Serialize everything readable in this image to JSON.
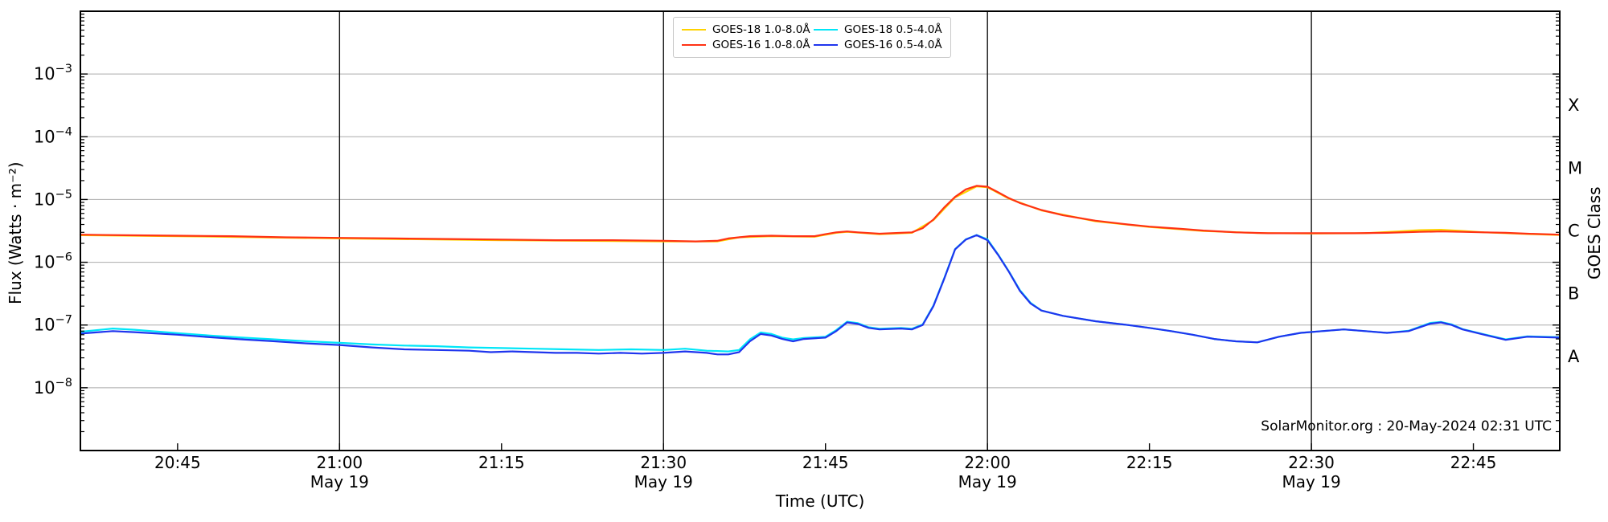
{
  "figure": {
    "watermark": "SolarMonitor.org : 20-May-2024 02:31 UTC"
  },
  "chart_data": {
    "type": "line",
    "title": "",
    "xlabel": "Time (UTC)",
    "ylabel": "Flux (Watts · m⁻²)",
    "ylabel_right": "GOES Class",
    "grid": {
      "horizontal_decades": true,
      "vertical_date_lines": true
    },
    "colors": {
      "grid_line": "#ababab",
      "date_line": "#111111",
      "axis": "#000000"
    },
    "x_axis": {
      "range": [
        "20:36",
        "22:53"
      ],
      "date": "May 19",
      "ticks": [
        {
          "time": "20:45",
          "label": "20:45",
          "line": false
        },
        {
          "time": "21:00",
          "label": "21:00",
          "date": "May 19",
          "line": true
        },
        {
          "time": "21:15",
          "label": "21:15",
          "line": false
        },
        {
          "time": "21:30",
          "label": "21:30",
          "date": "May 19",
          "line": true
        },
        {
          "time": "21:45",
          "label": "21:45",
          "line": false
        },
        {
          "time": "22:00",
          "label": "22:00",
          "date": "May 19",
          "line": true
        },
        {
          "time": "22:15",
          "label": "22:15",
          "line": false
        },
        {
          "time": "22:30",
          "label": "22:30",
          "date": "May 19",
          "line": true
        },
        {
          "time": "22:45",
          "label": "22:45",
          "line": false
        }
      ]
    },
    "y_axis": {
      "scale": "log",
      "range_exp": [
        -9,
        -2
      ],
      "labeled_exp": [
        -3,
        -4,
        -5,
        -6,
        -7,
        -8
      ]
    },
    "right_axis": {
      "classes": [
        {
          "label": "X",
          "exp": -3.5
        },
        {
          "label": "M",
          "exp": -4.5
        },
        {
          "label": "C",
          "exp": -5.5
        },
        {
          "label": "B",
          "exp": -6.5
        },
        {
          "label": "A",
          "exp": -7.5
        }
      ]
    },
    "legend": {
      "order": [
        0,
        2,
        1,
        3
      ],
      "position": "top-center"
    },
    "series": [
      {
        "name": "GOES-18 1.0-8.0Å",
        "color": "#ffd200",
        "points": [
          [
            "20:36",
            2.7e-06
          ],
          [
            "20:45",
            2.6e-06
          ],
          [
            "21:00",
            2.4e-06
          ],
          [
            "21:15",
            2.25e-06
          ],
          [
            "21:30",
            2.15e-06
          ],
          [
            "21:35",
            2.15e-06
          ],
          [
            "21:37",
            2.5e-06
          ],
          [
            "21:40",
            2.6e-06
          ],
          [
            "21:44",
            2.55e-06
          ],
          [
            "21:46",
            2.95e-06
          ],
          [
            "21:47",
            3.05e-06
          ],
          [
            "21:50",
            2.8e-06
          ],
          [
            "21:53",
            2.95e-06
          ],
          [
            "21:55",
            4.7e-06
          ],
          [
            "21:57",
            1.08e-05
          ],
          [
            "21:59",
            1.62e-05
          ],
          [
            "22:00",
            1.57e-05
          ],
          [
            "22:02",
            1.03e-05
          ],
          [
            "22:05",
            6.7e-06
          ],
          [
            "22:10",
            4.5e-06
          ],
          [
            "22:15",
            3.65e-06
          ],
          [
            "22:20",
            3.15e-06
          ],
          [
            "22:25",
            2.92e-06
          ],
          [
            "22:30",
            2.87e-06
          ],
          [
            "22:35",
            2.9e-06
          ],
          [
            "22:38",
            3.1e-06
          ],
          [
            "22:40",
            3.25e-06
          ],
          [
            "22:42",
            3.3e-06
          ],
          [
            "22:44",
            3.15e-06
          ],
          [
            "22:46",
            3e-06
          ],
          [
            "22:50",
            2.82e-06
          ],
          [
            "22:53",
            2.72e-06
          ]
        ]
      },
      {
        "name": "GOES-16 1.0-8.0Å",
        "color": "#ff3214",
        "points": [
          [
            "20:36",
            2.75e-06
          ],
          [
            "20:40",
            2.7e-06
          ],
          [
            "20:45",
            2.65e-06
          ],
          [
            "20:50",
            2.6e-06
          ],
          [
            "20:55",
            2.5e-06
          ],
          [
            "21:00",
            2.45e-06
          ],
          [
            "21:05",
            2.4e-06
          ],
          [
            "21:10",
            2.35e-06
          ],
          [
            "21:15",
            2.3e-06
          ],
          [
            "21:20",
            2.25e-06
          ],
          [
            "21:25",
            2.25e-06
          ],
          [
            "21:30",
            2.2e-06
          ],
          [
            "21:33",
            2.15e-06
          ],
          [
            "21:35",
            2.2e-06
          ],
          [
            "21:36",
            2.4e-06
          ],
          [
            "21:38",
            2.6e-06
          ],
          [
            "21:40",
            2.65e-06
          ],
          [
            "21:42",
            2.6e-06
          ],
          [
            "21:44",
            2.6e-06
          ],
          [
            "21:45",
            2.8e-06
          ],
          [
            "21:46",
            3e-06
          ],
          [
            "21:47",
            3.1e-06
          ],
          [
            "21:48",
            3e-06
          ],
          [
            "21:50",
            2.85e-06
          ],
          [
            "21:52",
            2.95e-06
          ],
          [
            "21:53",
            3e-06
          ],
          [
            "21:54",
            3.5e-06
          ],
          [
            "21:55",
            4.8e-06
          ],
          [
            "21:56",
            7.5e-06
          ],
          [
            "21:57",
            1.1e-05
          ],
          [
            "21:58",
            1.45e-05
          ],
          [
            "21:59",
            1.65e-05
          ],
          [
            "22:00",
            1.6e-05
          ],
          [
            "22:01",
            1.3e-05
          ],
          [
            "22:02",
            1.05e-05
          ],
          [
            "22:03",
            8.8e-06
          ],
          [
            "22:05",
            6.8e-06
          ],
          [
            "22:07",
            5.6e-06
          ],
          [
            "22:10",
            4.6e-06
          ],
          [
            "22:13",
            4e-06
          ],
          [
            "22:15",
            3.7e-06
          ],
          [
            "22:18",
            3.4e-06
          ],
          [
            "22:20",
            3.2e-06
          ],
          [
            "22:23",
            3e-06
          ],
          [
            "22:26",
            2.9e-06
          ],
          [
            "22:30",
            2.9e-06
          ],
          [
            "22:34",
            2.9e-06
          ],
          [
            "22:37",
            2.95e-06
          ],
          [
            "22:40",
            3.05e-06
          ],
          [
            "22:42",
            3.1e-06
          ],
          [
            "22:44",
            3.05e-06
          ],
          [
            "22:46",
            3e-06
          ],
          [
            "22:48",
            2.95e-06
          ],
          [
            "22:50",
            2.85e-06
          ],
          [
            "22:53",
            2.75e-06
          ]
        ]
      },
      {
        "name": "GOES-18 0.5-4.0Å",
        "color": "#00e6f8",
        "points": [
          [
            "20:36",
            7.8e-08
          ],
          [
            "20:39",
            8.8e-08
          ],
          [
            "20:41",
            8.4e-08
          ],
          [
            "20:45",
            7.4e-08
          ],
          [
            "20:48",
            6.8e-08
          ],
          [
            "20:51",
            6.3e-08
          ],
          [
            "20:54",
            5.9e-08
          ],
          [
            "20:57",
            5.5e-08
          ],
          [
            "21:00",
            5.2e-08
          ],
          [
            "21:03",
            4.9e-08
          ],
          [
            "21:06",
            4.7e-08
          ],
          [
            "21:09",
            4.6e-08
          ],
          [
            "21:12",
            4.4e-08
          ],
          [
            "21:15",
            4.3e-08
          ],
          [
            "21:18",
            4.2e-08
          ],
          [
            "21:21",
            4.1e-08
          ],
          [
            "21:24",
            4e-08
          ],
          [
            "21:27",
            4.1e-08
          ],
          [
            "21:30",
            4e-08
          ],
          [
            "21:32",
            4.2e-08
          ],
          [
            "21:34",
            3.9e-08
          ],
          [
            "21:36",
            3.8e-08
          ],
          [
            "21:37",
            4e-08
          ],
          [
            "21:38",
            5.9e-08
          ],
          [
            "21:39",
            7.6e-08
          ],
          [
            "21:40",
            7.2e-08
          ],
          [
            "21:41",
            6.3e-08
          ],
          [
            "21:42",
            5.9e-08
          ],
          [
            "21:43",
            6.2e-08
          ],
          [
            "21:45",
            6.5e-08
          ],
          [
            "21:46",
            8.3e-08
          ],
          [
            "21:47",
            1.13e-07
          ],
          [
            "21:48",
            1.07e-07
          ],
          [
            "21:49",
            9.2e-08
          ],
          [
            "21:50",
            8.7e-08
          ],
          [
            "21:52",
            9e-08
          ],
          [
            "21:53",
            8.7e-08
          ],
          [
            "21:54",
            1.02e-07
          ],
          [
            "21:55",
            2.05e-07
          ],
          [
            "21:56",
            5.6e-07
          ],
          [
            "21:57",
            1.62e-06
          ],
          [
            "21:58",
            2.32e-06
          ],
          [
            "21:59",
            2.72e-06
          ],
          [
            "22:00",
            2.32e-06
          ],
          [
            "22:01",
            1.32e-06
          ],
          [
            "22:02",
            7.1e-07
          ],
          [
            "22:03",
            3.6e-07
          ],
          [
            "22:04",
            2.25e-07
          ],
          [
            "22:05",
            1.7e-07
          ],
          [
            "22:07",
            1.4e-07
          ],
          [
            "22:10",
            1.15e-07
          ],
          [
            "22:13",
            1e-07
          ],
          [
            "22:15",
            9e-08
          ],
          [
            "22:17",
            8e-08
          ],
          [
            "22:19",
            7e-08
          ],
          [
            "22:21",
            6e-08
          ],
          [
            "22:23",
            5.5e-08
          ],
          [
            "22:25",
            5.3e-08
          ],
          [
            "22:27",
            6.5e-08
          ],
          [
            "22:29",
            7.5e-08
          ],
          [
            "22:31",
            8e-08
          ],
          [
            "22:33",
            8.5e-08
          ],
          [
            "22:35",
            8e-08
          ],
          [
            "22:37",
            7.5e-08
          ],
          [
            "22:39",
            8.1e-08
          ],
          [
            "22:41",
            1.08e-07
          ],
          [
            "22:42",
            1.12e-07
          ],
          [
            "22:43",
            1.02e-07
          ],
          [
            "22:44",
            8.6e-08
          ],
          [
            "22:46",
            7.1e-08
          ],
          [
            "22:48",
            5.9e-08
          ],
          [
            "22:50",
            6.6e-08
          ],
          [
            "22:53",
            6.4e-08
          ]
        ]
      },
      {
        "name": "GOES-16 0.5-4.0Å",
        "color": "#1f35ee",
        "points": [
          [
            "20:36",
            7.3e-08
          ],
          [
            "20:39",
            8e-08
          ],
          [
            "20:41",
            7.7e-08
          ],
          [
            "20:45",
            7e-08
          ],
          [
            "20:48",
            6.4e-08
          ],
          [
            "20:51",
            5.9e-08
          ],
          [
            "20:54",
            5.5e-08
          ],
          [
            "20:57",
            5.1e-08
          ],
          [
            "21:00",
            4.8e-08
          ],
          [
            "21:03",
            4.4e-08
          ],
          [
            "21:06",
            4.1e-08
          ],
          [
            "21:09",
            4e-08
          ],
          [
            "21:12",
            3.9e-08
          ],
          [
            "21:14",
            3.7e-08
          ],
          [
            "21:16",
            3.8e-08
          ],
          [
            "21:18",
            3.7e-08
          ],
          [
            "21:20",
            3.6e-08
          ],
          [
            "21:22",
            3.6e-08
          ],
          [
            "21:24",
            3.5e-08
          ],
          [
            "21:26",
            3.6e-08
          ],
          [
            "21:28",
            3.5e-08
          ],
          [
            "21:30",
            3.6e-08
          ],
          [
            "21:32",
            3.8e-08
          ],
          [
            "21:34",
            3.6e-08
          ],
          [
            "21:35",
            3.4e-08
          ],
          [
            "21:36",
            3.4e-08
          ],
          [
            "21:37",
            3.7e-08
          ],
          [
            "21:38",
            5.5e-08
          ],
          [
            "21:39",
            7.2e-08
          ],
          [
            "21:40",
            6.8e-08
          ],
          [
            "21:41",
            6e-08
          ],
          [
            "21:42",
            5.5e-08
          ],
          [
            "21:43",
            6e-08
          ],
          [
            "21:45",
            6.3e-08
          ],
          [
            "21:46",
            8e-08
          ],
          [
            "21:47",
            1.1e-07
          ],
          [
            "21:48",
            1.04e-07
          ],
          [
            "21:49",
            9e-08
          ],
          [
            "21:50",
            8.5e-08
          ],
          [
            "21:52",
            8.8e-08
          ],
          [
            "21:53",
            8.5e-08
          ],
          [
            "21:54",
            1e-07
          ],
          [
            "21:55",
            2e-07
          ],
          [
            "21:56",
            5.5e-07
          ],
          [
            "21:57",
            1.6e-06
          ],
          [
            "21:58",
            2.3e-06
          ],
          [
            "21:59",
            2.7e-06
          ],
          [
            "22:00",
            2.25e-06
          ],
          [
            "22:01",
            1.3e-06
          ],
          [
            "22:02",
            7e-07
          ],
          [
            "22:03",
            3.5e-07
          ],
          [
            "22:04",
            2.2e-07
          ],
          [
            "22:05",
            1.7e-07
          ],
          [
            "22:07",
            1.4e-07
          ],
          [
            "22:10",
            1.15e-07
          ],
          [
            "22:13",
            1e-07
          ],
          [
            "22:15",
            9e-08
          ],
          [
            "22:17",
            8e-08
          ],
          [
            "22:19",
            7e-08
          ],
          [
            "22:21",
            6e-08
          ],
          [
            "22:23",
            5.5e-08
          ],
          [
            "22:25",
            5.3e-08
          ],
          [
            "22:27",
            6.5e-08
          ],
          [
            "22:29",
            7.5e-08
          ],
          [
            "22:31",
            8e-08
          ],
          [
            "22:33",
            8.5e-08
          ],
          [
            "22:35",
            8e-08
          ],
          [
            "22:37",
            7.5e-08
          ],
          [
            "22:39",
            8e-08
          ],
          [
            "22:41",
            1.05e-07
          ],
          [
            "22:42",
            1.1e-07
          ],
          [
            "22:43",
            1e-07
          ],
          [
            "22:44",
            8.5e-08
          ],
          [
            "22:46",
            7e-08
          ],
          [
            "22:48",
            5.8e-08
          ],
          [
            "22:50",
            6.5e-08
          ],
          [
            "22:53",
            6.3e-08
          ]
        ]
      }
    ]
  }
}
